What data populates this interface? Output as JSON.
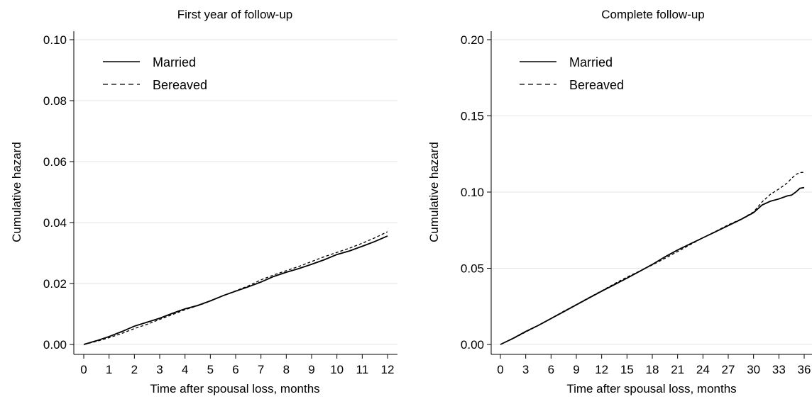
{
  "chart_data": [
    {
      "type": "line",
      "title": "First year of follow-up",
      "xlabel": "Time after spousal loss, months",
      "ylabel": "Cumulative hazard",
      "xlim": [
        0,
        12
      ],
      "ylim": [
        0,
        0.1
      ],
      "x_ticks": [
        "0",
        "1",
        "2",
        "3",
        "4",
        "5",
        "6",
        "7",
        "8",
        "9",
        "10",
        "11",
        "12"
      ],
      "y_ticks": [
        "0.00",
        "0.02",
        "0.04",
        "0.06",
        "0.08",
        "0.10"
      ],
      "grid": "horizontal",
      "legend_position": "top-left",
      "series": [
        {
          "name": "Married",
          "style": "solid",
          "x": [
            0,
            0.5,
            1,
            1.5,
            2,
            2.5,
            3,
            3.5,
            4,
            4.5,
            5,
            5.5,
            6,
            6.5,
            7,
            7.5,
            8,
            8.5,
            9,
            9.5,
            10,
            10.5,
            11,
            11.5,
            12
          ],
          "y": [
            0,
            0.0012,
            0.0026,
            0.0042,
            0.006,
            0.0073,
            0.0086,
            0.0102,
            0.0117,
            0.0128,
            0.0143,
            0.016,
            0.0175,
            0.0189,
            0.0205,
            0.0223,
            0.0237,
            0.0249,
            0.0263,
            0.0278,
            0.0295,
            0.0307,
            0.0322,
            0.0338,
            0.0356
          ]
        },
        {
          "name": "Bereaved",
          "style": "dashed",
          "x": [
            0,
            0.5,
            1,
            1.5,
            2,
            2.5,
            3,
            3.5,
            4,
            4.5,
            5,
            5.5,
            6,
            6.5,
            7,
            7.5,
            8,
            8.5,
            9,
            9.5,
            10,
            10.5,
            11,
            11.5,
            12
          ],
          "y": [
            0,
            0.001,
            0.0022,
            0.0036,
            0.0052,
            0.0066,
            0.0082,
            0.0098,
            0.0114,
            0.0127,
            0.0142,
            0.016,
            0.0176,
            0.0192,
            0.0212,
            0.0228,
            0.0242,
            0.0256,
            0.0272,
            0.0288,
            0.0302,
            0.0316,
            0.0332,
            0.035,
            0.037
          ]
        }
      ]
    },
    {
      "type": "line",
      "title": "Complete follow-up",
      "xlabel": "Time after spousal loss, months",
      "ylabel": "Cumulative hazard",
      "xlim": [
        0,
        36
      ],
      "ylim": [
        0,
        0.2
      ],
      "x_ticks": [
        "0",
        "3",
        "6",
        "9",
        "12",
        "15",
        "18",
        "21",
        "24",
        "27",
        "30",
        "33",
        "36"
      ],
      "y_ticks": [
        "0.00",
        "0.05",
        "0.10",
        "0.15",
        "0.20"
      ],
      "grid": "horizontal",
      "legend_position": "top-left",
      "series": [
        {
          "name": "Married",
          "style": "solid",
          "x": [
            0,
            1.5,
            3,
            4.5,
            6,
            7.5,
            9,
            10.5,
            12,
            13.5,
            15,
            16.5,
            18,
            19.5,
            21,
            22.5,
            24,
            25.5,
            27,
            28.5,
            30,
            31,
            32,
            33,
            34,
            34.5,
            35,
            35.5,
            36
          ],
          "y": [
            0,
            0.004,
            0.0085,
            0.0125,
            0.017,
            0.0215,
            0.026,
            0.0305,
            0.035,
            0.0392,
            0.0435,
            0.048,
            0.0525,
            0.0575,
            0.062,
            0.066,
            0.07,
            0.074,
            0.078,
            0.082,
            0.0865,
            0.0915,
            0.094,
            0.0955,
            0.0975,
            0.098,
            0.1,
            0.1025,
            0.103
          ]
        },
        {
          "name": "Bereaved",
          "style": "dashed",
          "x": [
            0,
            1.5,
            3,
            4.5,
            6,
            7.5,
            9,
            10.5,
            12,
            13.5,
            15,
            16.5,
            18,
            19.5,
            21,
            22.5,
            24,
            25.5,
            27,
            28.5,
            30,
            31,
            32,
            33,
            34,
            34.5,
            35,
            35.5,
            36
          ],
          "y": [
            0,
            0.0038,
            0.0082,
            0.0125,
            0.017,
            0.0218,
            0.0262,
            0.0308,
            0.0352,
            0.0398,
            0.0442,
            0.0482,
            0.0522,
            0.0565,
            0.061,
            0.0655,
            0.07,
            0.0742,
            0.0785,
            0.0822,
            0.087,
            0.0935,
            0.0985,
            0.102,
            0.106,
            0.109,
            0.1115,
            0.1128,
            0.113
          ]
        }
      ]
    }
  ]
}
